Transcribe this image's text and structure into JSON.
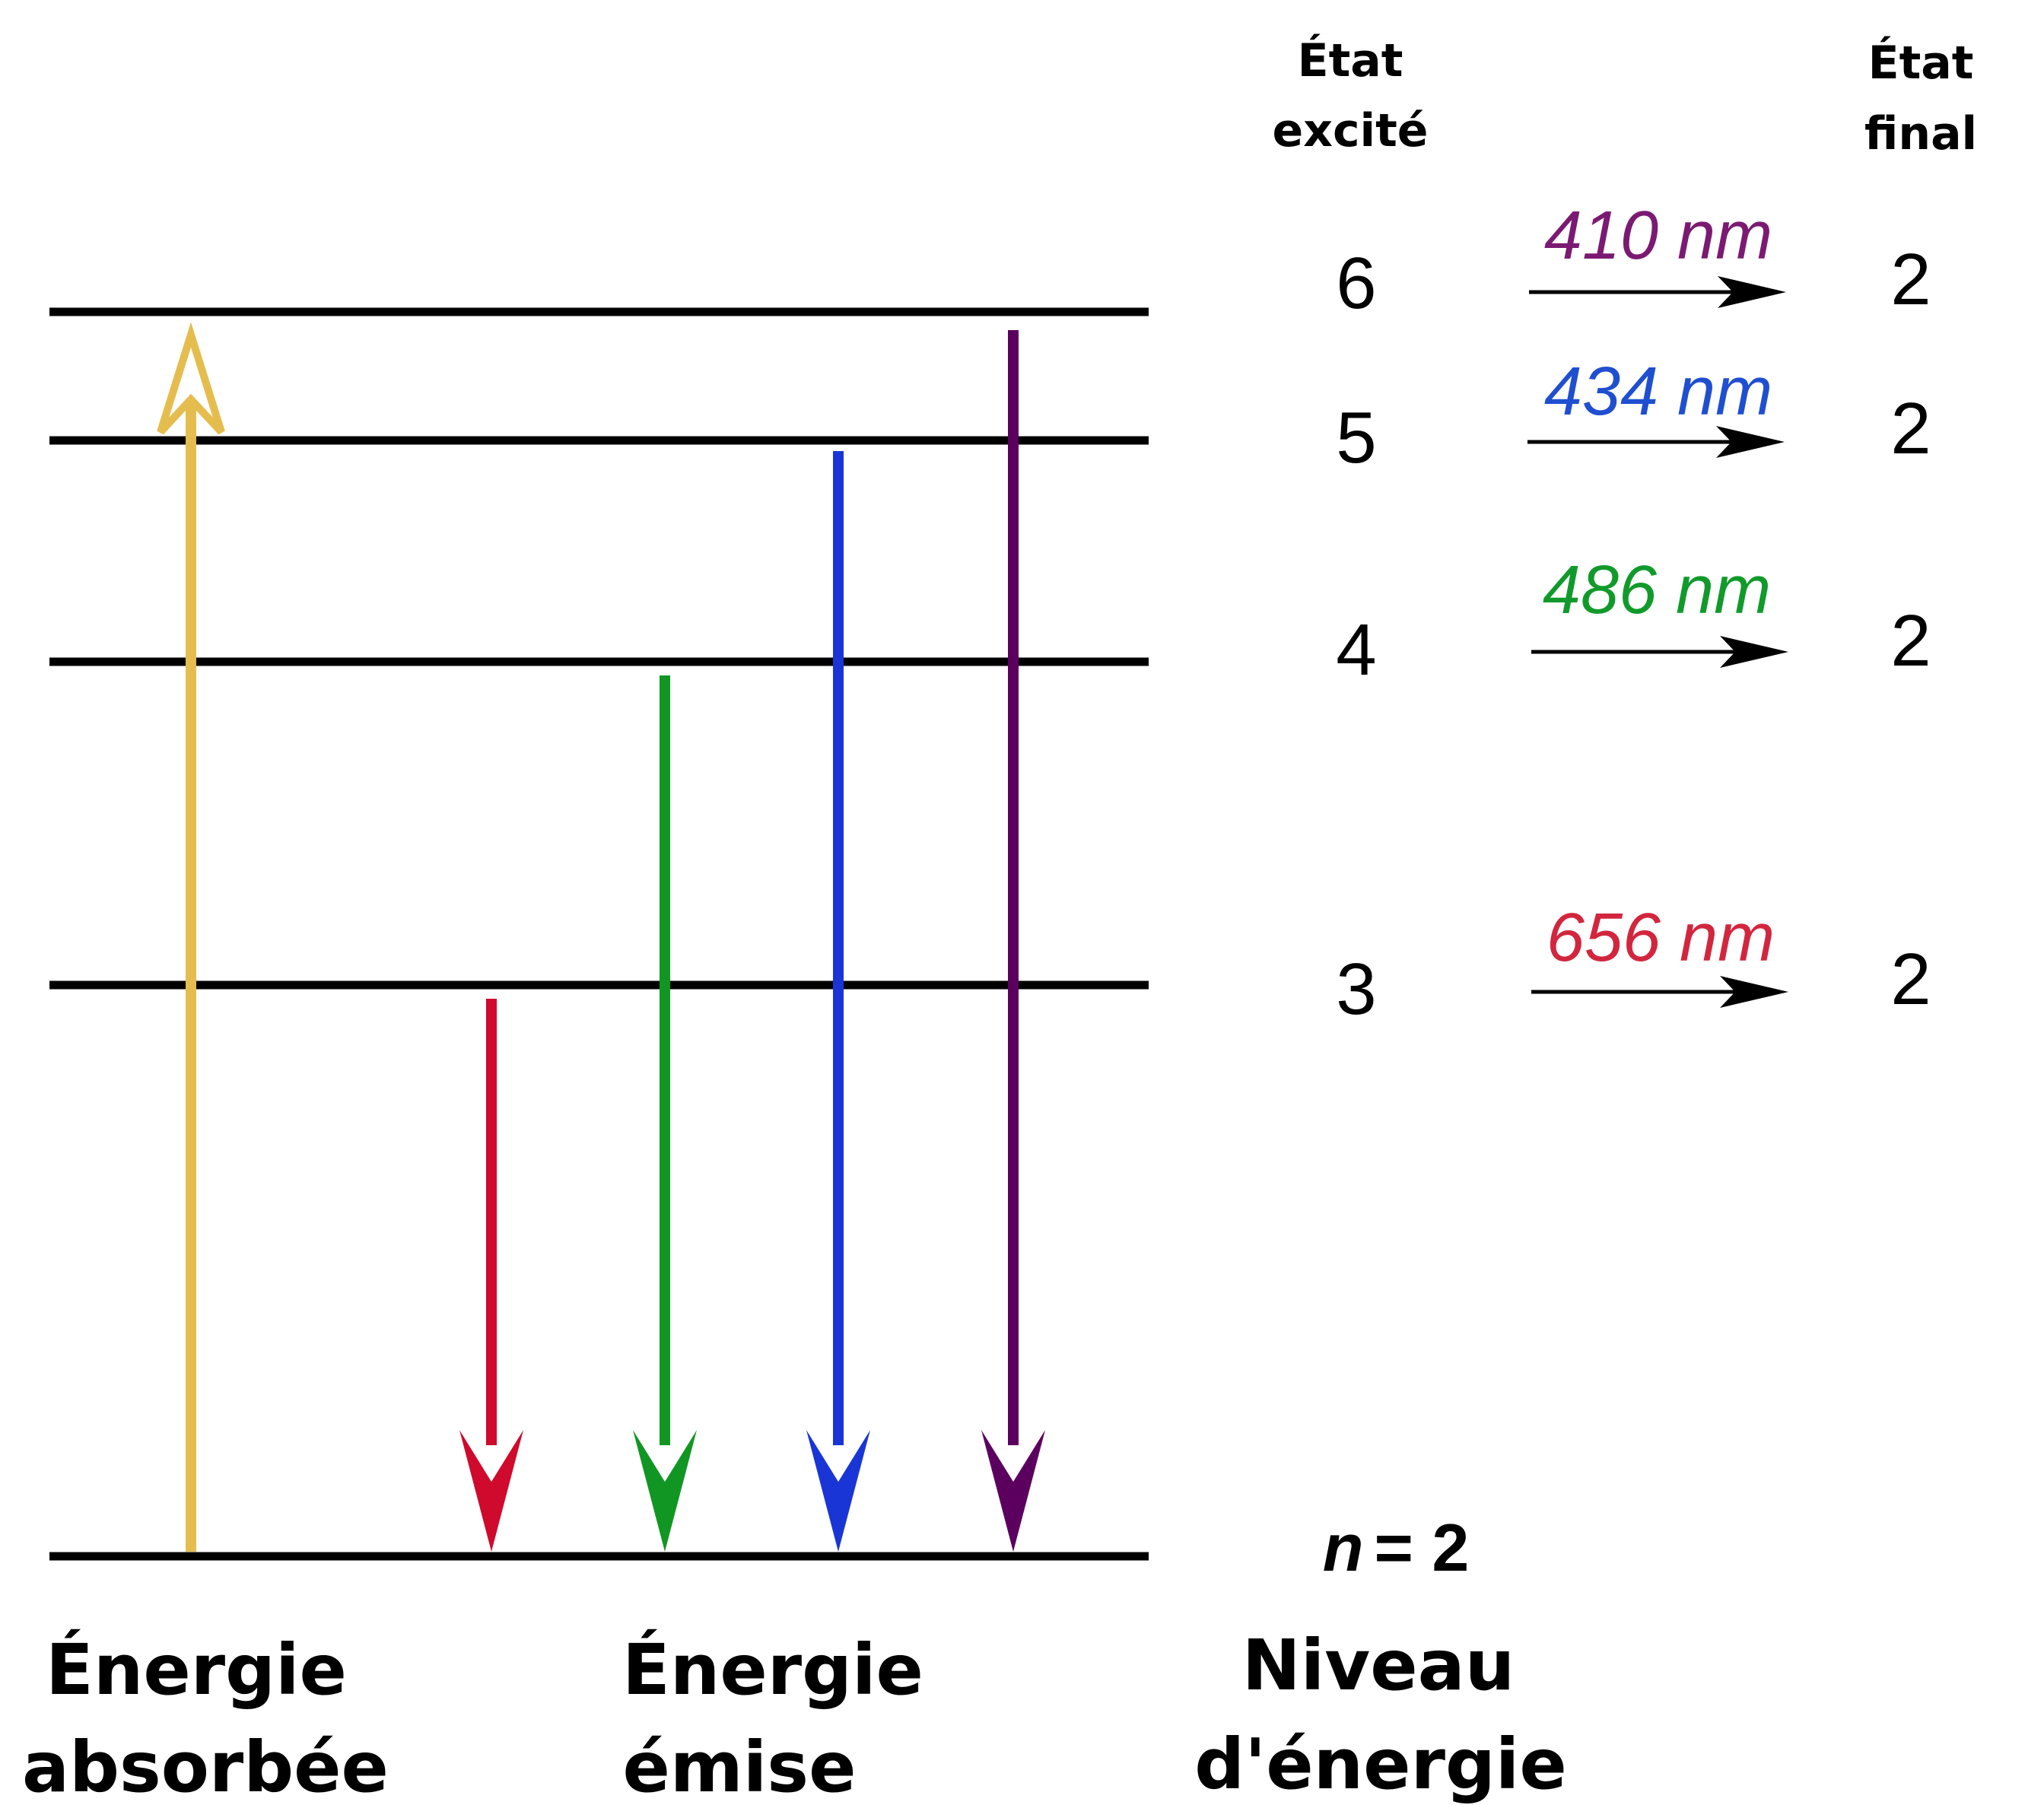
{
  "headers": {
    "excited_line1": "État",
    "excited_line2": "excité",
    "final_line1": "État",
    "final_line2": "final"
  },
  "transitions": [
    {
      "from": "6",
      "to": "2",
      "wavelength": "410 nm",
      "color": "#7b1a72"
    },
    {
      "from": "5",
      "to": "2",
      "wavelength": "434 nm",
      "color": "#1f4fd0"
    },
    {
      "from": "4",
      "to": "2",
      "wavelength": "486 nm",
      "color": "#119a2b"
    },
    {
      "from": "3",
      "to": "2",
      "wavelength": "656 nm",
      "color": "#d2263e"
    }
  ],
  "base_level": {
    "n_symbol": "n",
    "equals": "= 2"
  },
  "bottom_labels": {
    "absorbed_line1": "Énergie",
    "absorbed_line2": "absorbée",
    "emitted_line1": "Énergie",
    "emitted_line2": "émise",
    "level_line1": "Niveau",
    "level_line2": "d'énergie"
  },
  "arrow_colors": {
    "absorbed": "#e5bd4f",
    "red": "#cf0a2c",
    "green": "#129623",
    "blue": "#1a35d6",
    "purple": "#5c005f"
  }
}
